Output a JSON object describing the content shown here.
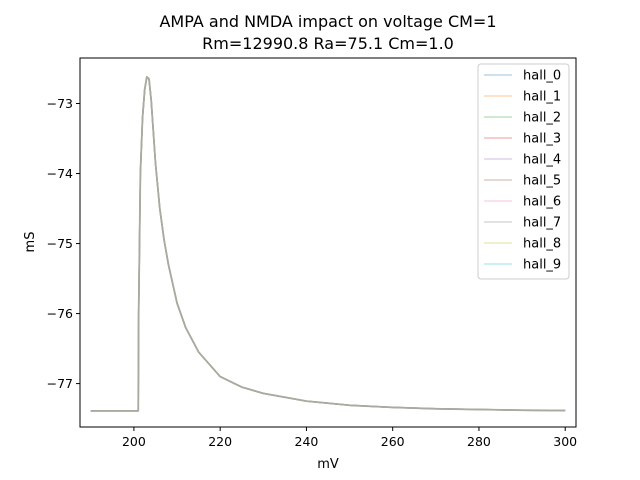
{
  "chart_data": {
    "type": "line",
    "title": "AMPA and NMDA impact on voltage CM=1",
    "subtitle": "Rm=12990.8 Ra=75.1 Cm=1.0",
    "xlabel": "mV",
    "ylabel": "mS",
    "xlim": [
      187.5,
      302.5
    ],
    "ylim": [
      -77.62,
      -72.35
    ],
    "x_ticks": [
      200,
      220,
      240,
      260,
      280,
      300
    ],
    "x_tick_labels": [
      "200",
      "220",
      "240",
      "260",
      "280",
      "300"
    ],
    "y_ticks": [
      -73,
      -74,
      -75,
      -76,
      -77
    ],
    "y_tick_labels": [
      "−73",
      "−74",
      "−75",
      "−76",
      "−77"
    ],
    "grid": false,
    "legend_position": "top-right",
    "x": [
      190,
      201,
      201.1,
      201.5,
      202,
      202.5,
      203,
      203.5,
      204,
      205,
      206,
      207,
      208,
      210,
      212,
      215,
      220,
      225,
      230,
      240,
      250,
      260,
      270,
      280,
      290,
      300
    ],
    "series": [
      {
        "name": "hall_0",
        "color": "#1f77b4"
      },
      {
        "name": "hall_1",
        "color": "#ff7f0e"
      },
      {
        "name": "hall_2",
        "color": "#2ca02c"
      },
      {
        "name": "hall_3",
        "color": "#d62728"
      },
      {
        "name": "hall_4",
        "color": "#9467bd"
      },
      {
        "name": "hall_5",
        "color": "#8c564b"
      },
      {
        "name": "hall_6",
        "color": "#e377c2"
      },
      {
        "name": "hall_7",
        "color": "#7f7f7f"
      },
      {
        "name": "hall_8",
        "color": "#bcbd22"
      },
      {
        "name": "hall_9",
        "color": "#17becf"
      }
    ],
    "y": [
      -77.39,
      -77.39,
      -76.0,
      -74.0,
      -73.2,
      -72.8,
      -72.62,
      -72.65,
      -72.95,
      -73.85,
      -74.5,
      -74.95,
      -75.3,
      -75.85,
      -76.2,
      -76.55,
      -76.9,
      -77.05,
      -77.14,
      -77.25,
      -77.31,
      -77.34,
      -77.36,
      -77.37,
      -77.38,
      -77.385
    ],
    "composite_line_color": "#aaaaa0"
  }
}
